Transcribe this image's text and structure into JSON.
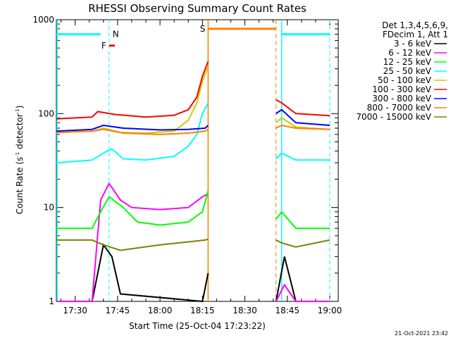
{
  "chart_data": {
    "type": "line",
    "title": "RHESSI Observing Summary Count Rates",
    "xlabel": "Start Time (25-Oct-04 17:23:22)",
    "ylabel": "Count Rate (s",
    "ylabel_sup": "-1",
    "ylabel_tail": " detector",
    "ylabel_sup2": "-1",
    "ylabel_end": ")",
    "y_scale": "log",
    "ylim": [
      1,
      1000
    ],
    "y_ticks": [
      {
        "value": 1,
        "label": "1"
      },
      {
        "value": 10,
        "label": "10"
      },
      {
        "value": 100,
        "label": "100"
      },
      {
        "value": 1000,
        "label": "1000"
      }
    ],
    "xlim": [
      "17:23:22",
      "19:03:00"
    ],
    "x_ticks": [
      "17:30",
      "17:45",
      "18:00",
      "18:15",
      "18:30",
      "18:45",
      "19:00"
    ],
    "legend_position": "top-right",
    "legend_header": [
      "Det 1,3,4,5,6,9,",
      "FDecim 1, Att 1"
    ],
    "series": [
      {
        "name": "3 - 6 keV",
        "color": "#000000",
        "x": [
          "17:23:22",
          "17:36",
          "17:40",
          "17:43",
          "17:46",
          "18:15",
          "18:17",
          "18:41",
          "18:44",
          "18:48",
          "19:00"
        ],
        "y": [
          1.0,
          1.0,
          4.0,
          3.0,
          1.2,
          1.0,
          2.0,
          1.0,
          3.0,
          1.0,
          1.0
        ]
      },
      {
        "name": "6 - 12 keV",
        "color": "#ff00ff",
        "x": [
          "17:23:22",
          "17:36",
          "17:39",
          "17:42",
          "17:46",
          "17:50",
          "18:00",
          "18:10",
          "18:15",
          "18:17",
          "18:41",
          "18:44",
          "18:48",
          "19:00"
        ],
        "y": [
          1.0,
          1.0,
          12.0,
          18.0,
          12.0,
          10.0,
          9.5,
          10.0,
          13.0,
          14.0,
          1.0,
          1.5,
          1.0,
          1.0
        ]
      },
      {
        "name": "12 - 25 keV",
        "color": "#00ff00",
        "x": [
          "17:23:22",
          "17:36",
          "17:39",
          "17:42",
          "17:47",
          "17:52",
          "18:00",
          "18:10",
          "18:15",
          "18:17",
          "18:41",
          "18:43",
          "18:48",
          "19:00"
        ],
        "y": [
          6.0,
          6.0,
          9.0,
          13.0,
          10.0,
          7.0,
          6.5,
          7.0,
          9.0,
          15.0,
          7.5,
          9.0,
          6.0,
          6.0
        ]
      },
      {
        "name": "25 - 50 keV",
        "color": "#00ffff",
        "x": [
          "17:23:22",
          "17:36",
          "17:40",
          "17:43",
          "17:47",
          "17:55",
          "18:05",
          "18:10",
          "18:13",
          "18:15",
          "18:17",
          "18:41",
          "18:43",
          "18:48",
          "19:00"
        ],
        "y": [
          30.0,
          32.0,
          38.0,
          42.0,
          33.0,
          32.0,
          35.0,
          45.0,
          60.0,
          100.0,
          130.0,
          33.0,
          38.0,
          32.0,
          32.0
        ]
      },
      {
        "name": "50 - 100 keV",
        "color": "#cccc00",
        "x": [
          "17:23:22",
          "17:36",
          "17:40",
          "17:46",
          "17:55",
          "18:05",
          "18:10",
          "18:13",
          "18:15",
          "18:17",
          "18:41",
          "18:43",
          "18:48",
          "19:00"
        ],
        "y": [
          63.0,
          65.0,
          70.0,
          63.0,
          62.0,
          65.0,
          85.0,
          130.0,
          220.0,
          320.0,
          80.0,
          90.0,
          72.0,
          68.0
        ]
      },
      {
        "name": "100 - 300 keV",
        "color": "#ff0000",
        "x": [
          "17:23:22",
          "17:36",
          "17:38",
          "17:44",
          "17:55",
          "18:05",
          "18:10",
          "18:13",
          "18:15",
          "18:17",
          "18:41",
          "18:43",
          "18:48",
          "19:00"
        ],
        "y": [
          88.0,
          92.0,
          105.0,
          98.0,
          92.0,
          96.0,
          110.0,
          150.0,
          250.0,
          360.0,
          140.0,
          130.0,
          100.0,
          95.0
        ]
      },
      {
        "name": "300 - 800 keV",
        "color": "#0000ff",
        "x": [
          "17:23:22",
          "17:36",
          "17:40",
          "17:47",
          "18:00",
          "18:10",
          "18:16",
          "18:17",
          "18:41",
          "18:43",
          "18:48",
          "19:00"
        ],
        "y": [
          65.0,
          68.0,
          75.0,
          70.0,
          67.0,
          68.0,
          70.0,
          75.0,
          100.0,
          110.0,
          80.0,
          75.0
        ]
      },
      {
        "name": "800 - 7000 keV",
        "color": "#ff8000",
        "x": [
          "17:23:22",
          "17:36",
          "17:40",
          "17:47",
          "18:00",
          "18:10",
          "18:16",
          "18:17",
          "18:41",
          "18:43",
          "18:48",
          "19:00"
        ],
        "y": [
          63.0,
          65.0,
          68.0,
          62.0,
          60.0,
          62.0,
          65.0,
          68.0,
          70.0,
          75.0,
          70.0,
          68.0
        ]
      },
      {
        "name": "7000 - 15000 keV",
        "color": "#808000",
        "x": [
          "17:23:22",
          "17:36",
          "17:40",
          "17:46",
          "18:00",
          "18:10",
          "18:16",
          "18:17",
          "18:41",
          "18:43",
          "18:48",
          "19:00"
        ],
        "y": [
          4.5,
          4.5,
          4.0,
          3.5,
          4.0,
          4.3,
          4.5,
          4.6,
          4.5,
          4.2,
          3.8,
          4.5
        ]
      }
    ],
    "annotations": {
      "saa_label": "S",
      "saa_color": "#ff8000",
      "saa_start": "18:17",
      "saa_end": "18:41",
      "night_label": "N",
      "night_color": "#00ffff",
      "night_bar_x": [
        "17:23:22",
        "17:39"
      ],
      "night_bar_y": 700,
      "night_end": "17:42",
      "night2_start": "18:43",
      "night2_end": "19:00",
      "night2_bar_x": [
        "18:43",
        "19:00"
      ],
      "flare_label": "F",
      "flare_color": "#ff0000",
      "flare_bar_x": [
        "17:42",
        "17:44"
      ],
      "flare_bar_y": 530
    },
    "timestamp": "21-Oct-2021 23:42"
  }
}
